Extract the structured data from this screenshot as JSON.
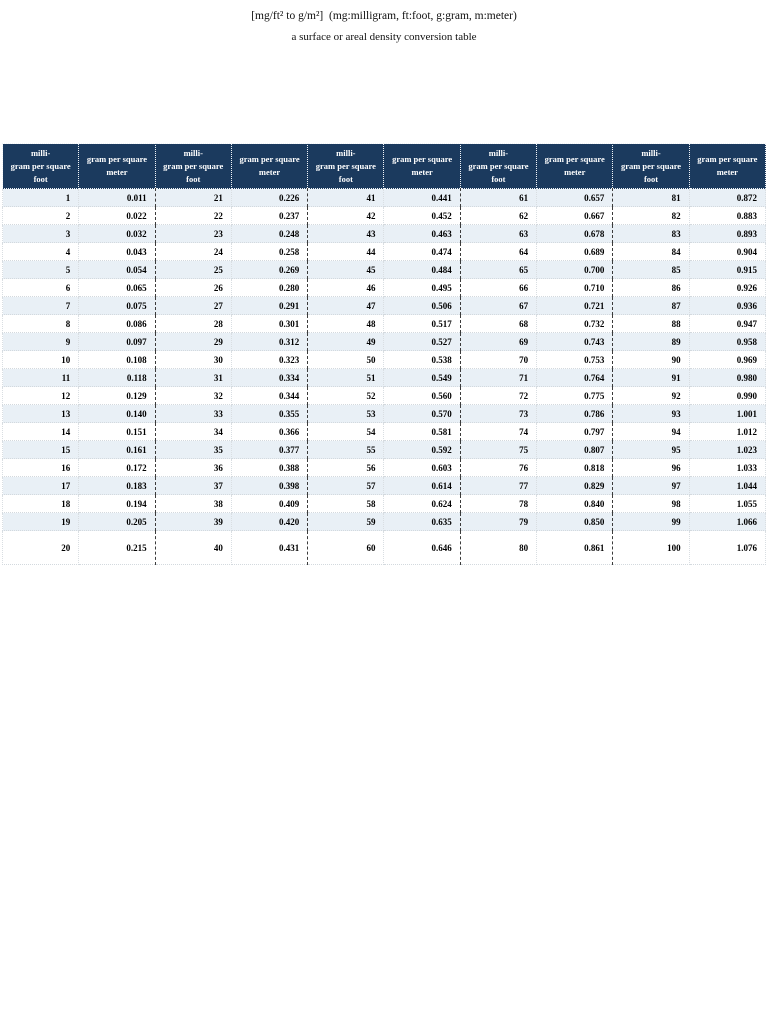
{
  "title": "[mg/ft² to g/m²]  (mg:milligram, ft:foot, g:gram, m:meter)",
  "subtitle": "a surface or areal density conversion table",
  "table": {
    "foot_header_lines": [
      "milli-",
      "gram per square",
      "foot"
    ],
    "meter_header_lines": [
      "gram per square",
      "meter"
    ],
    "groups": [
      {
        "foot": [
          1,
          2,
          3,
          4,
          5,
          6,
          7,
          8,
          9,
          10,
          11,
          12,
          13,
          14,
          15,
          16,
          17,
          18,
          19,
          20
        ],
        "meter": [
          "0.011",
          "0.022",
          "0.032",
          "0.043",
          "0.054",
          "0.065",
          "0.075",
          "0.086",
          "0.097",
          "0.108",
          "0.118",
          "0.129",
          "0.140",
          "0.151",
          "0.161",
          "0.172",
          "0.183",
          "0.194",
          "0.205",
          "0.215"
        ]
      },
      {
        "foot": [
          21,
          22,
          23,
          24,
          25,
          26,
          27,
          28,
          29,
          30,
          31,
          32,
          33,
          34,
          35,
          36,
          37,
          38,
          39,
          40
        ],
        "meter": [
          "0.226",
          "0.237",
          "0.248",
          "0.258",
          "0.269",
          "0.280",
          "0.291",
          "0.301",
          "0.312",
          "0.323",
          "0.334",
          "0.344",
          "0.355",
          "0.366",
          "0.377",
          "0.388",
          "0.398",
          "0.409",
          "0.420",
          "0.431"
        ]
      },
      {
        "foot": [
          41,
          42,
          43,
          44,
          45,
          46,
          47,
          48,
          49,
          50,
          51,
          52,
          53,
          54,
          55,
          56,
          57,
          58,
          59,
          60
        ],
        "meter": [
          "0.441",
          "0.452",
          "0.463",
          "0.474",
          "0.484",
          "0.495",
          "0.506",
          "0.517",
          "0.527",
          "0.538",
          "0.549",
          "0.560",
          "0.570",
          "0.581",
          "0.592",
          "0.603",
          "0.614",
          "0.624",
          "0.635",
          "0.646"
        ]
      },
      {
        "foot": [
          61,
          62,
          63,
          64,
          65,
          66,
          67,
          68,
          69,
          70,
          71,
          72,
          73,
          74,
          75,
          76,
          77,
          78,
          79,
          80
        ],
        "meter": [
          "0.657",
          "0.667",
          "0.678",
          "0.689",
          "0.700",
          "0.710",
          "0.721",
          "0.732",
          "0.743",
          "0.753",
          "0.764",
          "0.775",
          "0.786",
          "0.797",
          "0.807",
          "0.818",
          "0.829",
          "0.840",
          "0.850",
          "0.861"
        ]
      },
      {
        "foot": [
          81,
          82,
          83,
          84,
          85,
          86,
          87,
          88,
          89,
          90,
          91,
          92,
          93,
          94,
          95,
          96,
          97,
          98,
          99,
          100
        ],
        "meter": [
          "0.872",
          "0.883",
          "0.893",
          "0.904",
          "0.915",
          "0.926",
          "0.936",
          "0.947",
          "0.958",
          "0.969",
          "0.980",
          "0.990",
          "1.001",
          "1.012",
          "1.023",
          "1.033",
          "1.044",
          "1.055",
          "1.066",
          "1.076"
        ]
      }
    ]
  },
  "colors": {
    "header_bg": "#1b3a5e",
    "header_text": "#ffffff",
    "stripe_row": "#e9f0f6",
    "group_separator": "#3b3b3b"
  }
}
